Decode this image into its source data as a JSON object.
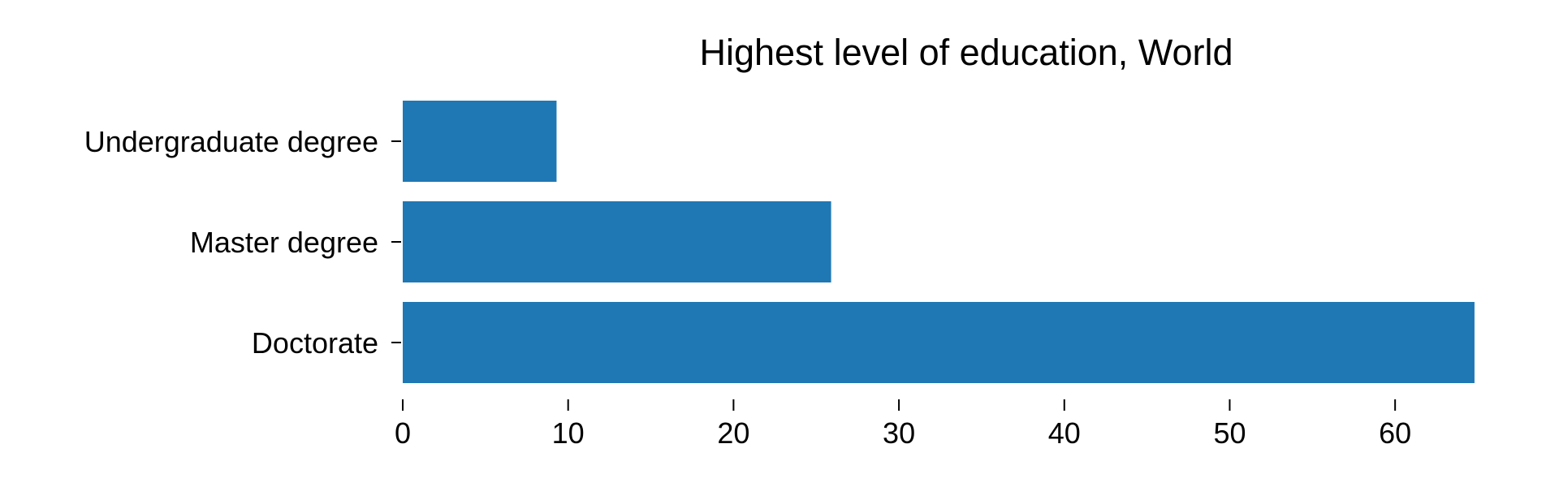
{
  "chart_data": {
    "type": "bar",
    "orientation": "horizontal",
    "title": "Highest level of education, World",
    "xlabel": "",
    "ylabel": "",
    "categories": [
      "Undergraduate degree",
      "Master degree",
      "Doctorate"
    ],
    "values": [
      9.3,
      25.9,
      64.8
    ],
    "xlim": [
      0,
      65
    ],
    "xticks": [
      "0",
      "10",
      "20",
      "30",
      "40",
      "50",
      "60"
    ],
    "bar_color": "#1f77b4",
    "grid": false,
    "legend": "none"
  }
}
